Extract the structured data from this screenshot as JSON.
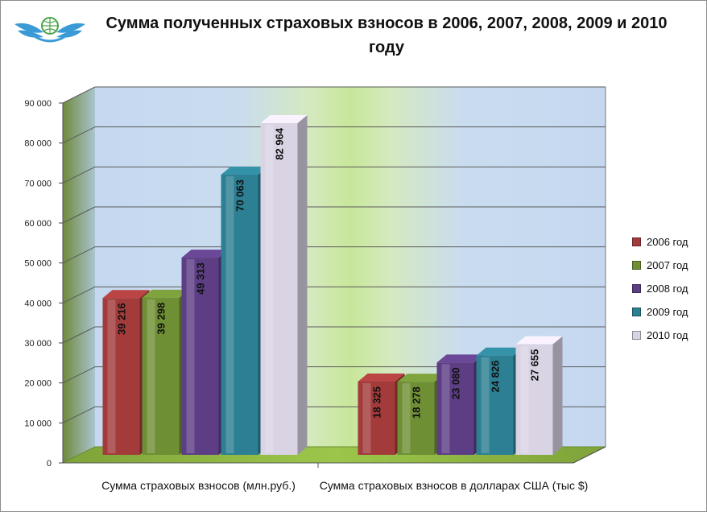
{
  "chart_data": {
    "type": "bar",
    "title": "Сумма полученных страховых взносов в  2006, 2007, 2008, 2009 и 2010 году",
    "categories": [
      "Сумма страховых взносов (млн.руб.)",
      "Сумма страховых взносов в долларах США (тыс $)"
    ],
    "series": [
      {
        "name": "2006 год",
        "values": [
          39216,
          18325
        ],
        "labels": [
          "39 216",
          "18 325"
        ],
        "color": "#A33B3B"
      },
      {
        "name": "2007 год",
        "values": [
          39298,
          18278
        ],
        "labels": [
          "39 298",
          "18 278"
        ],
        "color": "#6F8F35"
      },
      {
        "name": "2008 год",
        "values": [
          49313,
          23080
        ],
        "labels": [
          "49 313",
          "23 080"
        ],
        "color": "#5D3E84"
      },
      {
        "name": "2009 год",
        "values": [
          70063,
          24826
        ],
        "labels": [
          "70 063",
          "24 826"
        ],
        "color": "#2D7F93"
      },
      {
        "name": "2010 год",
        "values": [
          82964,
          27655
        ],
        "labels": [
          "82 964",
          "27 655"
        ],
        "color": "#D9D3E3"
      }
    ],
    "ylim": [
      0,
      90000
    ],
    "yticks": [
      "0",
      "10 000",
      "20 000",
      "30 000",
      "40 000",
      "50 000",
      "60 000",
      "70 000",
      "80 000",
      "90 000"
    ],
    "xlabel": "",
    "ylabel": "",
    "grid": true,
    "legend": "right"
  }
}
